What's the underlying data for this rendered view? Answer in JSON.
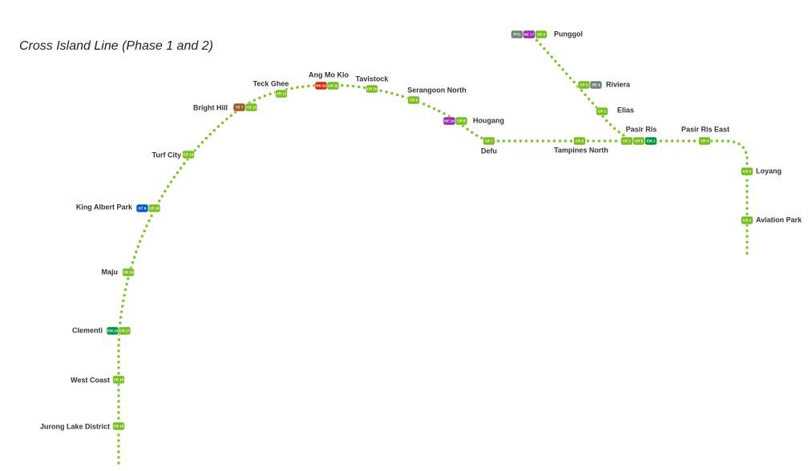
{
  "title": "Cross Island Line (Phase 1 and 2)",
  "stations": [
    {
      "name": "Jurong Lake District",
      "codes": [
        {
          "code": "CR 19",
          "color": "#78be20"
        }
      ]
    },
    {
      "name": "West Coast",
      "codes": [
        {
          "code": "CR 18",
          "color": "#78be20"
        }
      ]
    },
    {
      "name": "Clementi",
      "codes": [
        {
          "code": "EW 23",
          "color": "#009645"
        },
        {
          "code": "CR 17",
          "color": "#78be20"
        }
      ]
    },
    {
      "name": "Maju",
      "codes": [
        {
          "code": "CR 16",
          "color": "#78be20"
        }
      ]
    },
    {
      "name": "King Albert Park",
      "codes": [
        {
          "code": "DT 6",
          "color": "#005ec4"
        },
        {
          "code": "CR 15",
          "color": "#78be20"
        }
      ]
    },
    {
      "name": "Turf City",
      "codes": [
        {
          "code": "CR 14",
          "color": "#78be20"
        }
      ]
    },
    {
      "name": "Bright Hill",
      "codes": [
        {
          "code": "TE 7",
          "color": "#9d5b25"
        },
        {
          "code": "CR 13",
          "color": "#78be20"
        }
      ]
    },
    {
      "name": "Teck Ghee",
      "codes": [
        {
          "code": "CR 12",
          "color": "#78be20"
        }
      ]
    },
    {
      "name": "Ang Mo Kio",
      "codes": [
        {
          "code": "NS 16",
          "color": "#d42e12"
        },
        {
          "code": "CR 11",
          "color": "#78be20"
        }
      ]
    },
    {
      "name": "Tavistock",
      "codes": [
        {
          "code": "CR 10",
          "color": "#78be20"
        }
      ]
    },
    {
      "name": "Serangoon North",
      "codes": [
        {
          "code": "CR 9",
          "color": "#78be20"
        }
      ]
    },
    {
      "name": "Hougang",
      "codes": [
        {
          "code": "NE 14",
          "color": "#9e28b5"
        },
        {
          "code": "CR 8",
          "color": "#78be20"
        }
      ]
    },
    {
      "name": "Defu",
      "codes": [
        {
          "code": "CR 7",
          "color": "#78be20"
        }
      ]
    },
    {
      "name": "Tampines North",
      "codes": [
        {
          "code": "CR 6",
          "color": "#78be20"
        }
      ]
    },
    {
      "name": "Pasir Ris",
      "codes": [
        {
          "code": "CP 1",
          "color": "#78be20"
        },
        {
          "code": "CR 5",
          "color": "#78be20"
        },
        {
          "code": "EW 1",
          "color": "#009645"
        }
      ]
    },
    {
      "name": "Pasir Ris East",
      "codes": [
        {
          "code": "CR 4",
          "color": "#78be20"
        }
      ]
    },
    {
      "name": "Loyang",
      "codes": [
        {
          "code": "CR 3",
          "color": "#78be20"
        }
      ]
    },
    {
      "name": "Aviation Park",
      "codes": [
        {
          "code": "CR 2",
          "color": "#78be20"
        }
      ]
    },
    {
      "name": "Elias",
      "codes": [
        {
          "code": "CP 2",
          "color": "#78be20"
        }
      ]
    },
    {
      "name": "Riviera",
      "codes": [
        {
          "code": "CP 3",
          "color": "#78be20"
        },
        {
          "code": "PE 4",
          "color": "#748477"
        }
      ]
    },
    {
      "name": "Punggol",
      "codes": [
        {
          "code": "PTC",
          "color": "#748477"
        },
        {
          "code": "NE 17",
          "color": "#9e28b5"
        },
        {
          "code": "CP 4",
          "color": "#78be20"
        }
      ]
    }
  ]
}
